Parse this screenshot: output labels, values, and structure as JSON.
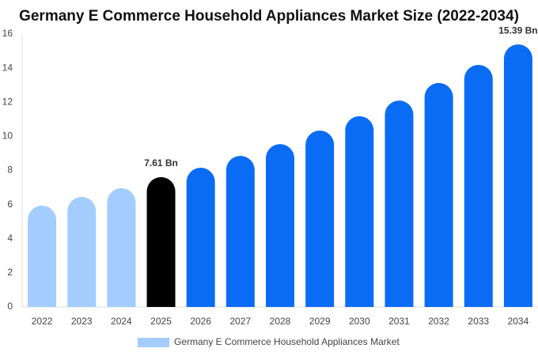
{
  "chart_data": {
    "type": "bar",
    "title": "Germany E Commerce Household Appliances Market Size (2022-2034)",
    "categories": [
      "2022",
      "2023",
      "2024",
      "2025",
      "2026",
      "2027",
      "2028",
      "2029",
      "2030",
      "2031",
      "2032",
      "2033",
      "2034"
    ],
    "series": [
      {
        "name": "Germany E Commerce Household Appliances Market",
        "color": "#a3cdfd",
        "colors": [
          "#a3cdfd",
          "#a3cdfd",
          "#a3cdfd",
          "#000000",
          "#0a6cf5",
          "#0a6cf5",
          "#0a6cf5",
          "#0a6cf5",
          "#0a6cf5",
          "#0a6cf5",
          "#0a6cf5",
          "#0a6cf5",
          "#0a6cf5"
        ],
        "values": [
          5.94,
          6.45,
          6.96,
          7.61,
          8.16,
          8.86,
          9.55,
          10.34,
          11.18,
          12.1,
          13.13,
          14.19,
          15.39
        ],
        "value_labels": [
          null,
          null,
          null,
          "7.61 Bn",
          null,
          null,
          null,
          null,
          null,
          null,
          null,
          null,
          "15.39 Bn"
        ]
      }
    ],
    "ylim": [
      0,
      16
    ],
    "yticks": [
      0,
      2,
      4,
      6,
      8,
      10,
      12,
      14,
      16
    ],
    "grid": false,
    "legend": "bottom"
  }
}
